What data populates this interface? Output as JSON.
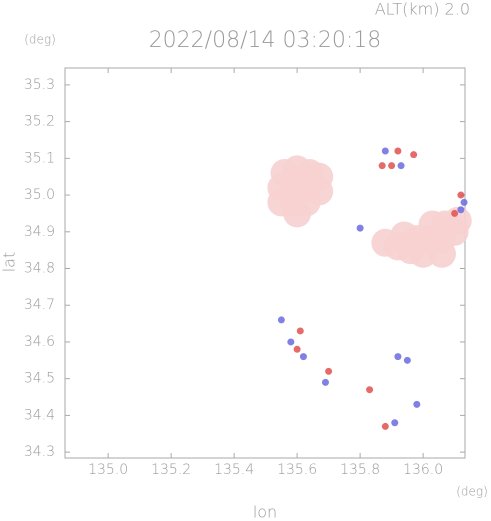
{
  "alt_label": "ALT(km) 2.0",
  "y_unit": "(deg)",
  "x_unit": "(deg)",
  "chart_data": {
    "type": "scatter",
    "title": "2022/08/14 03:20:18",
    "x_label": "lon",
    "y_label": "lat",
    "xlim": [
      134.863,
      136.133
    ],
    "ylim": [
      34.284,
      35.346
    ],
    "xticks": [
      {
        "value": 135,
        "label": "135.0"
      },
      135.2,
      135.4,
      135.6,
      135.8,
      {
        "value": 136,
        "label": "136.0"
      }
    ],
    "yticks": [
      34.3,
      34.4,
      34.5,
      34.6,
      34.7,
      34.8,
      34.9,
      {
        "value": 35,
        "label": "35.0"
      },
      35.1,
      35.2,
      35.3
    ],
    "series": [
      {
        "color": "#f7d0d0",
        "x": [
          135.56,
          135.6,
          135.64,
          135.67,
          135.55,
          135.59,
          135.63,
          135.67,
          135.55,
          135.59,
          135.63,
          135.6,
          135.88,
          135.92,
          135.96,
          136.0,
          135.94,
          135.98,
          136.02,
          136.06,
          136.03,
          136.07,
          136.1,
          136.11,
          136.06
        ],
        "y": [
          35.06,
          35.07,
          35.06,
          35.05,
          35.02,
          35.02,
          35.02,
          35.01,
          34.98,
          34.98,
          34.98,
          34.95,
          34.87,
          34.86,
          34.85,
          34.84,
          34.89,
          34.88,
          34.88,
          34.88,
          34.92,
          34.92,
          34.9,
          34.93,
          34.84
        ]
      },
      {
        "color": "#e05050",
        "x": [
          135.92,
          135.97,
          135.87,
          135.9,
          136.12,
          135.6,
          135.61,
          135.83,
          135.88,
          135.7,
          136.1
        ],
        "y": [
          35.12,
          35.11,
          35.08,
          35.08,
          35.0,
          34.58,
          34.63,
          34.47,
          34.37,
          34.52,
          34.95
        ]
      },
      {
        "color": "#6a6ae0",
        "x": [
          135.88,
          135.93,
          136.13,
          136.12,
          135.8,
          135.58,
          135.62,
          135.92,
          135.95,
          135.69,
          135.98,
          135.91,
          135.55
        ],
        "y": [
          35.12,
          35.08,
          34.98,
          34.96,
          34.91,
          34.6,
          34.56,
          34.56,
          34.55,
          34.49,
          34.43,
          34.38,
          34.66
        ]
      }
    ]
  }
}
